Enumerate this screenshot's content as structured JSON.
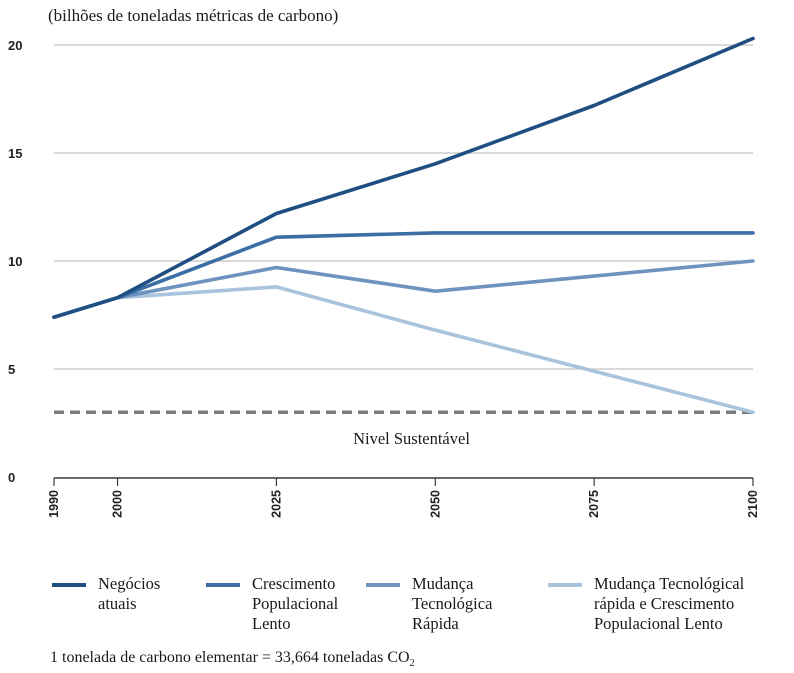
{
  "chart_data": {
    "type": "line",
    "unit_label": "(bilhões de toneladas métricas de carbono)",
    "x": [
      1990,
      2000,
      2025,
      2050,
      2075,
      2100
    ],
    "xticks": [
      "1990",
      "2000",
      "2025",
      "2050",
      "2075",
      "2100"
    ],
    "yticks": [
      "0",
      "5",
      "10",
      "15",
      "20"
    ],
    "ylim": [
      0,
      20.5
    ],
    "grid": true,
    "legend_position": "bottom",
    "series": [
      {
        "name": "Negócios\natuais",
        "color": "#1f4f82",
        "values": [
          7.4,
          8.3,
          12.2,
          14.5,
          17.2,
          20.3
        ]
      },
      {
        "name": "Crescimento\nPopulacional\nLento",
        "color": "#3a6ea5",
        "values": [
          7.4,
          8.3,
          11.1,
          11.3,
          11.3,
          11.3
        ]
      },
      {
        "name": "Mudança\nTecnológica\nRápida",
        "color": "#6f93bf",
        "values": [
          7.4,
          8.3,
          9.7,
          8.6,
          9.3,
          10.0
        ]
      },
      {
        "name": "Mudança Tecnológical\nrápida e Crescimento\nPopulacional Lento",
        "color": "#aac3dd",
        "values": [
          7.4,
          8.3,
          8.8,
          6.8,
          4.9,
          3.0
        ]
      }
    ],
    "reference_line": {
      "label": "Nivel Sustentável",
      "value": 3.0,
      "color": "#7a7a7a"
    }
  },
  "footnote": {
    "text": "1 tonelada de carbono elementar = 33,664 toneladas CO",
    "subscript": "2"
  }
}
